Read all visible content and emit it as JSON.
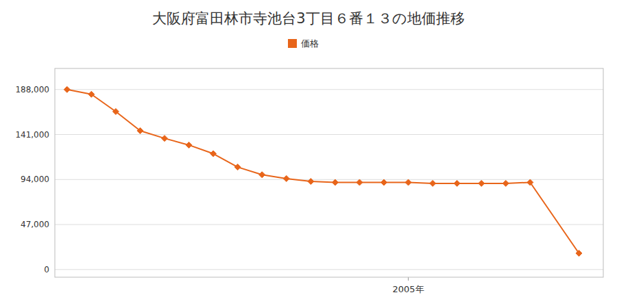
{
  "chart_data": {
    "type": "line",
    "title": "大阪府富田林市寺池台3丁目６番１３の地価推移",
    "x": [
      1991,
      1992,
      1993,
      1994,
      1995,
      1996,
      1997,
      1998,
      1999,
      2000,
      2001,
      2002,
      2003,
      2004,
      2005,
      2006,
      2007,
      2008,
      2009,
      2010,
      2012
    ],
    "series": [
      {
        "name": "価格",
        "color": "#e8651a",
        "marker": "diamond",
        "values": [
          188000,
          183000,
          165000,
          145000,
          137000,
          130000,
          121000,
          107000,
          99000,
          95000,
          92000,
          91000,
          91000,
          91000,
          91000,
          90000,
          90000,
          90000,
          90000,
          91000,
          17000
        ]
      }
    ],
    "xlim": [
      1990.5,
      2013.0
    ],
    "xticks": [
      {
        "value": 2005,
        "label": "2005年"
      }
    ],
    "ylim": [
      -8000,
      210000
    ],
    "yticks": [
      0,
      {
        "value": 47000,
        "label": "47,000"
      },
      {
        "value": 94000,
        "label": "94,000"
      },
      {
        "value": 141000,
        "label": "141,000"
      },
      {
        "value": 188000,
        "label": "188,000"
      }
    ],
    "grid": "y",
    "legend": "top"
  }
}
